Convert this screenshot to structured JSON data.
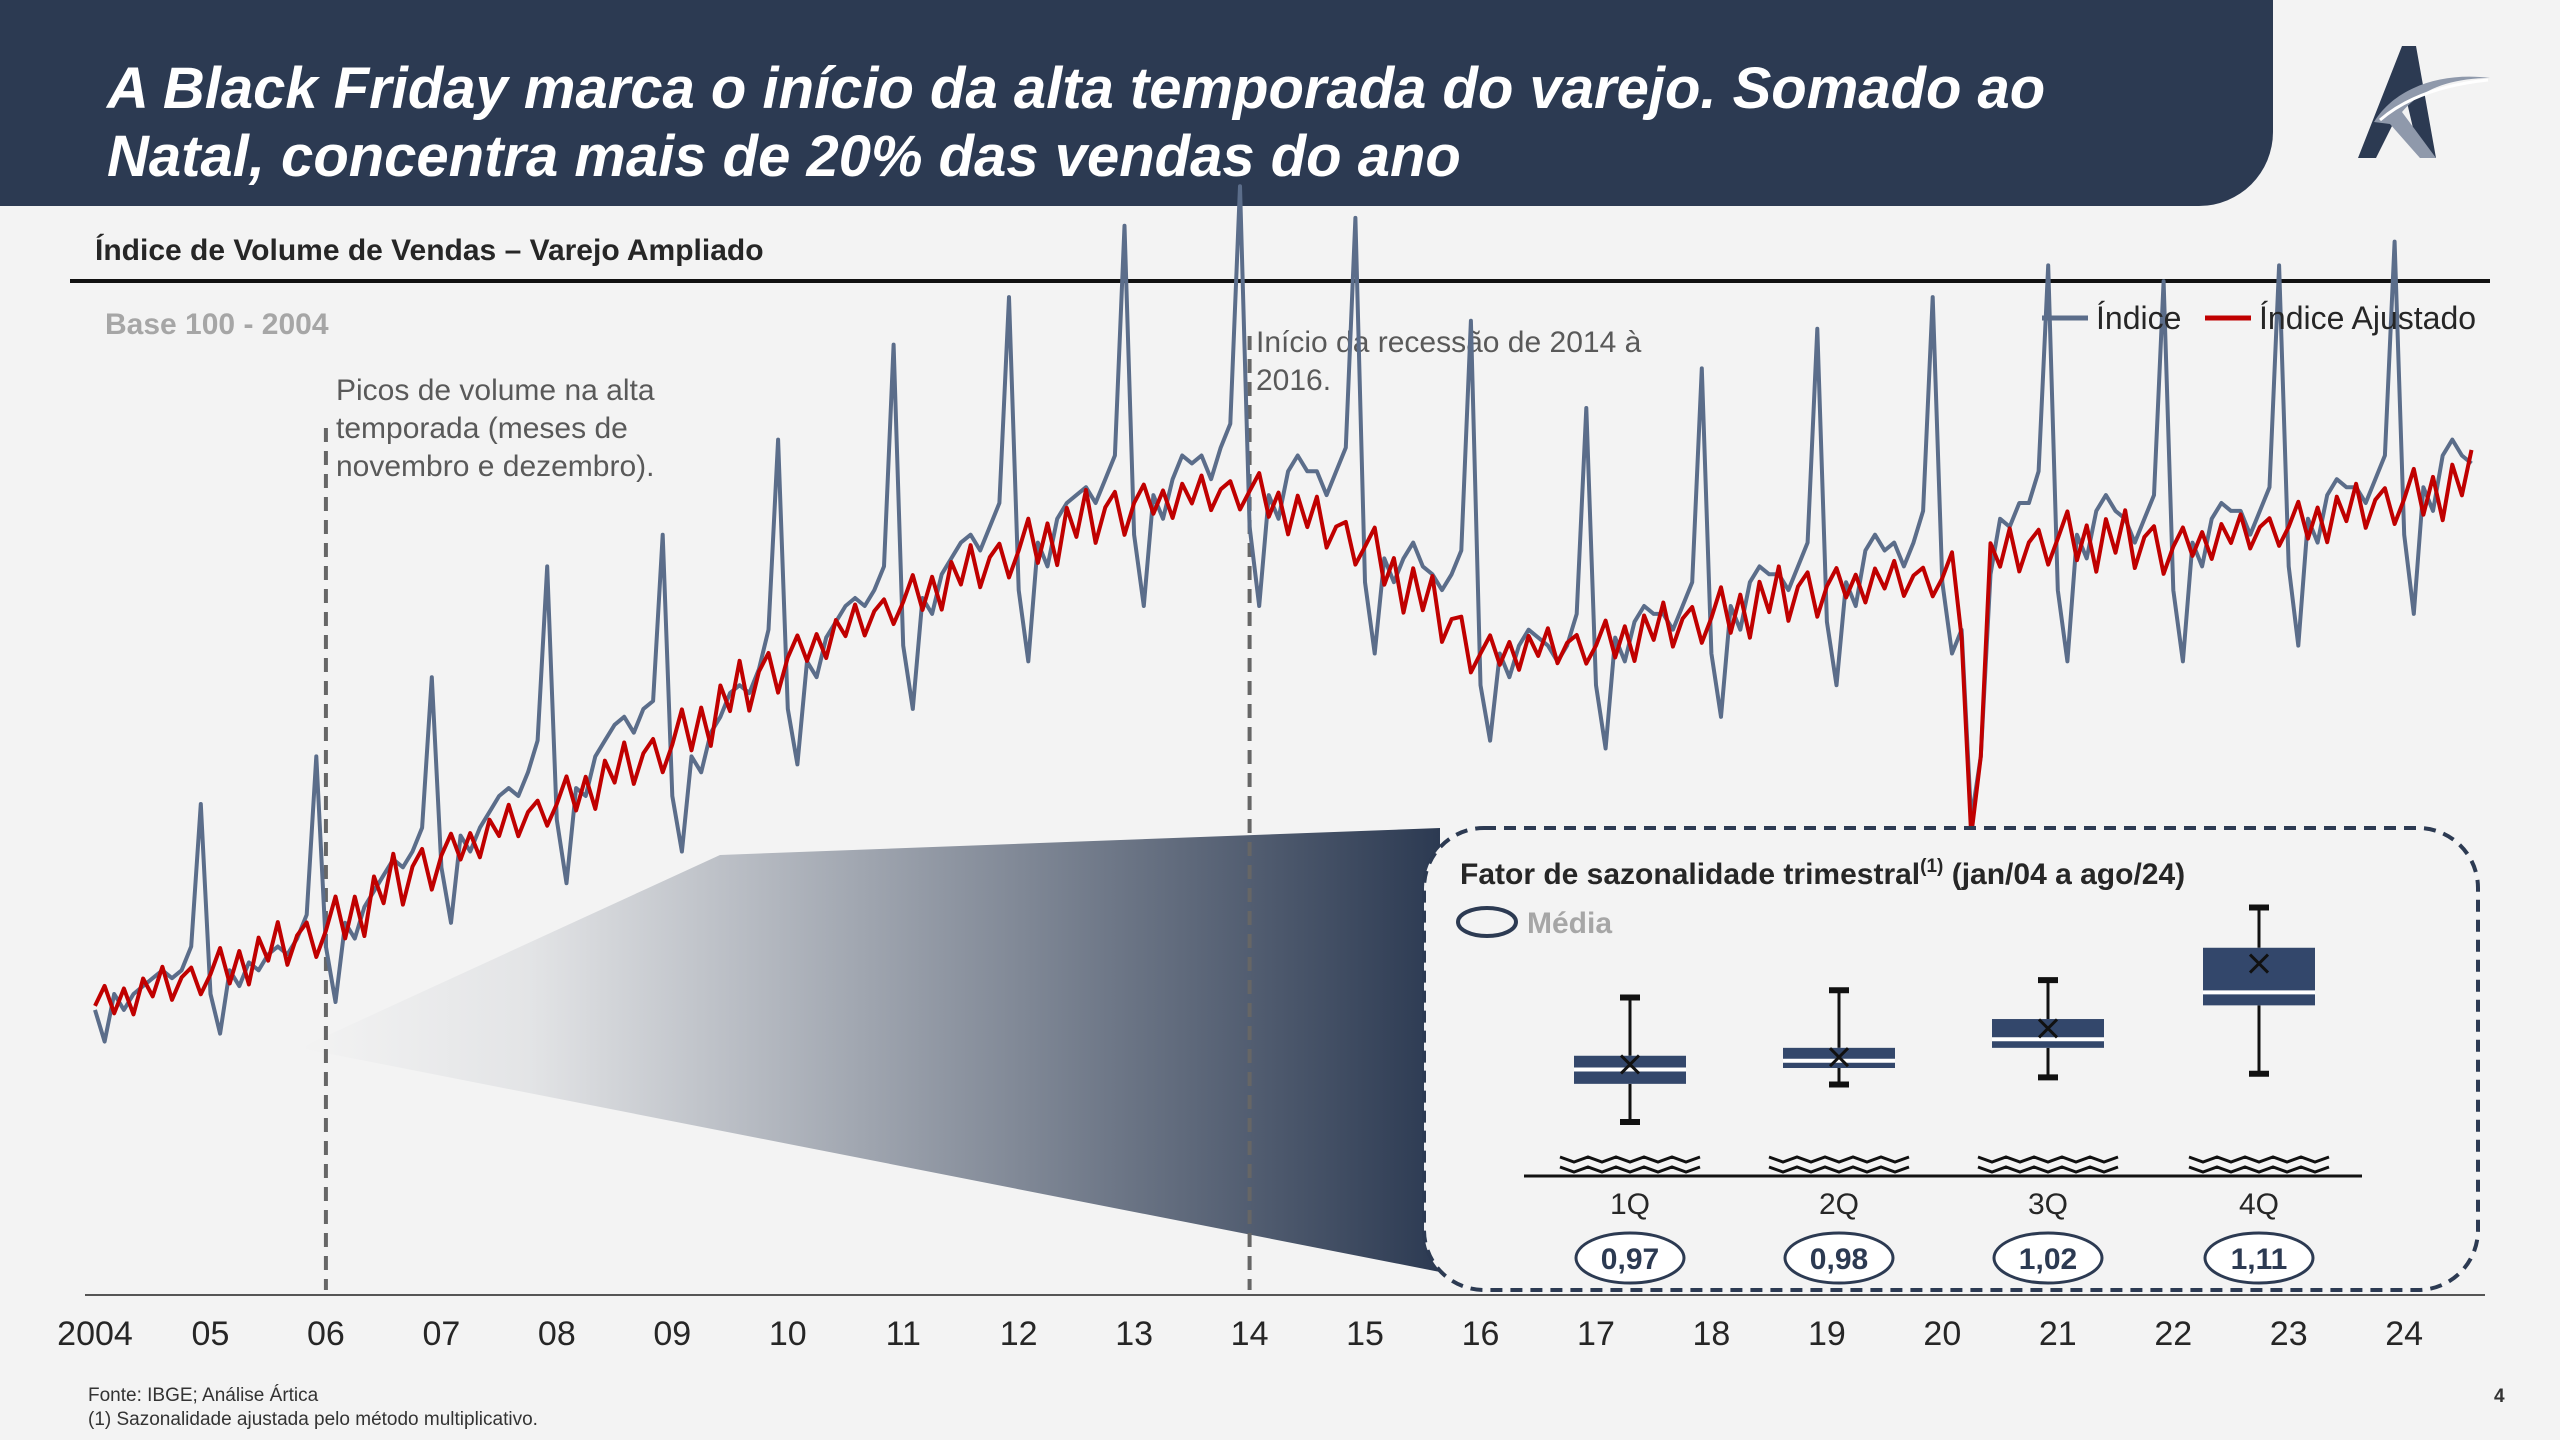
{
  "slide": {
    "title_line1": "A Black Friday marca o início da alta temporada do varejo. Somado ao",
    "title_line2": "Natal, concentra mais de 20% das vendas do ano",
    "subtitle": "Índice de Volume de Vendas – Varejo Ampliado",
    "footnote_source": "Fonte: IBGE; Análise Ártica",
    "footnote_1": "(1) Sazonalidade ajustada pelo método multiplicativo.",
    "page_number": "4"
  },
  "colors": {
    "header": "#2c3a52",
    "indice": "#5b6d8a",
    "ajustado": "#c00000",
    "box": "#33476b"
  },
  "chart_data": [
    {
      "type": "line",
      "title": "Índice de Volume de Vendas – Varejo Ampliado",
      "base_label": "Base 100 - 2004",
      "x_tick_labels": [
        "2004",
        "05",
        "06",
        "07",
        "08",
        "09",
        "10",
        "11",
        "12",
        "13",
        "14",
        "15",
        "16",
        "17",
        "18",
        "19",
        "20",
        "21",
        "22",
        "23",
        "24"
      ],
      "x_range": [
        2004,
        2024.7
      ],
      "ylim": [
        60,
        185
      ],
      "legend": [
        "Índice",
        "Índice Ajustado"
      ],
      "legend_position": "top-right",
      "series": [
        {
          "name": "Índice",
          "monthly": [
            [
              96,
              92,
              98,
              96,
              98,
              99,
              100,
              101,
              100,
              101,
              104,
              122
            ],
            [
              98,
              93,
              101,
              99,
              102,
              101,
              103,
              104,
              103,
              105,
              108,
              128
            ],
            [
              104,
              97,
              107,
              105,
              109,
              111,
              113,
              115,
              114,
              116,
              119,
              138
            ],
            [
              114,
              107,
              118,
              116,
              119,
              121,
              123,
              124,
              123,
              126,
              130,
              152
            ],
            [
              120,
              112,
              124,
              123,
              128,
              130,
              132,
              133,
              131,
              134,
              135,
              156
            ],
            [
              123,
              116,
              128,
              126,
              131,
              133,
              136,
              137,
              136,
              139,
              144,
              168
            ],
            [
              134,
              127,
              140,
              138,
              143,
              145,
              147,
              148,
              147,
              149,
              152,
              180
            ],
            [
              142,
              134,
              148,
              146,
              151,
              153,
              155,
              156,
              154,
              157,
              160,
              186
            ],
            [
              149,
              140,
              155,
              152,
              158,
              160,
              161,
              162,
              160,
              163,
              166,
              195
            ],
            [
              156,
              147,
              161,
              158,
              163,
              166,
              165,
              166,
              163,
              167,
              170,
              200
            ],
            [
              157,
              147,
              161,
              158,
              164,
              166,
              164,
              164,
              161,
              164,
              167,
              196
            ],
            [
              150,
              141,
              153,
              150,
              153,
              155,
              152,
              151,
              149,
              151,
              154,
              183
            ],
            [
              137,
              130,
              141,
              138,
              142,
              144,
              143,
              142,
              140,
              142,
              146,
              172
            ],
            [
              137,
              129,
              143,
              140,
              145,
              147,
              146,
              146,
              144,
              147,
              150,
              177
            ],
            [
              141,
              133,
              147,
              144,
              150,
              152,
              151,
              151,
              149,
              152,
              155,
              182
            ],
            [
              145,
              137,
              150,
              147,
              154,
              156,
              154,
              155,
              152,
              155,
              159,
              186
            ],
            [
              150,
              141,
              144,
              120,
              128,
              151,
              158,
              157,
              160,
              160,
              164,
              190
            ],
            [
              149,
              140,
              156,
              153,
              159,
              161,
              159,
              158,
              155,
              158,
              161,
              188
            ],
            [
              149,
              140,
              155,
              152,
              158,
              160,
              159,
              159,
              156,
              159,
              162,
              190
            ],
            [
              152,
              142,
              158,
              155,
              161,
              163,
              162,
              162,
              160,
              163,
              166,
              193
            ],
            [
              156,
              146,
              162,
              159,
              166,
              168,
              166,
              165
            ]
          ]
        },
        {
          "name": "Índice Ajustado",
          "annual": [
            96.5,
            100.5,
            106.0,
            115.5,
            122.0,
            129.5,
            140.5,
            147.5,
            154.0,
            160.0,
            161.5,
            154.5,
            141.0,
            142.0,
            145.5,
            149.5,
            150.5,
            155.5,
            154.5,
            157.0,
            160.5
          ]
        }
      ],
      "annotations": [
        {
          "x": 2006,
          "text": "Picos de volume na alta temporada (meses de novembro e dezembro)."
        },
        {
          "x": 2014,
          "text": "Início da recessão de 2014 à 2016."
        }
      ]
    },
    {
      "type": "box",
      "title": "Fator de sazonalidade trimestral",
      "title_superscript": "(1)",
      "title_suffix": " (jan/04 a ago/24)",
      "legend_label": "Média",
      "categories": [
        "1Q",
        "2Q",
        "3Q",
        "4Q"
      ],
      "mean_labels": [
        "0,97",
        "0,98",
        "1,02",
        "1,11"
      ],
      "ylim": [
        0.84,
        1.24
      ],
      "boxes": [
        {
          "min": 0.89,
          "q1": 0.943,
          "median": 0.963,
          "q3": 0.982,
          "max": 1.063,
          "mean": 0.97
        },
        {
          "min": 0.942,
          "q1": 0.965,
          "median": 0.975,
          "q3": 0.993,
          "max": 1.073,
          "mean": 0.98
        },
        {
          "min": 0.952,
          "q1": 0.993,
          "median": 1.005,
          "q3": 1.033,
          "max": 1.087,
          "mean": 1.02
        },
        {
          "min": 0.957,
          "q1": 1.052,
          "median": 1.07,
          "q3": 1.132,
          "max": 1.188,
          "mean": 1.11
        }
      ]
    }
  ]
}
